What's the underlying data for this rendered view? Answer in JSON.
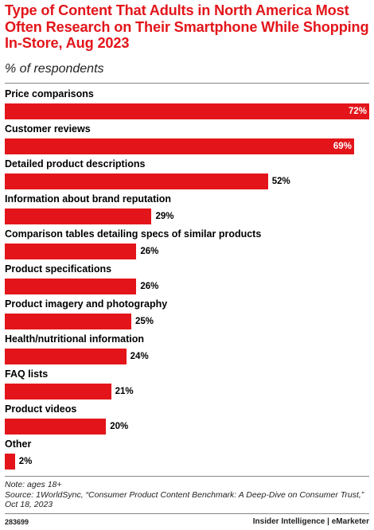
{
  "header": {
    "title": "Type of Content That Adults in North America Most Often Research on Their Smartphone While Shopping In-Store, Aug 2023",
    "subtitle": "% of respondents"
  },
  "chart_data": {
    "type": "bar",
    "orientation": "horizontal",
    "title": "Type of Content That Adults in North America Most Often Research on Their Smartphone While Shopping In-Store, Aug 2023",
    "subtitle": "% of respondents",
    "categories": [
      "Price comparisons",
      "Customer reviews",
      "Detailed product descriptions",
      "Information about brand reputation",
      "Comparison tables detailing specs of similar products",
      "Product specifications",
      "Product imagery and photography",
      "Health/nutritional information",
      "FAQ lists",
      "Product videos",
      "Other"
    ],
    "values": [
      72,
      69,
      52,
      29,
      26,
      26,
      25,
      24,
      21,
      20,
      2
    ],
    "value_labels": [
      "72%",
      "69%",
      "52%",
      "29%",
      "26%",
      "26%",
      "25%",
      "24%",
      "21%",
      "20%",
      "2%"
    ],
    "unit": "%",
    "xlim": [
      0,
      72
    ],
    "bar_color": "#e3151a",
    "grid": false,
    "legend": "none"
  },
  "footer": {
    "note": "Note: ages 18+",
    "source": "Source: 1WorldSync, “Consumer Product Content Benchmark: A Deep-Dive on Consumer Trust,” Oct 18, 2023",
    "chart_id": "283699",
    "brand_a": "Insider Intelligence",
    "brand_sep": " | ",
    "brand_b": "eMarketer"
  }
}
